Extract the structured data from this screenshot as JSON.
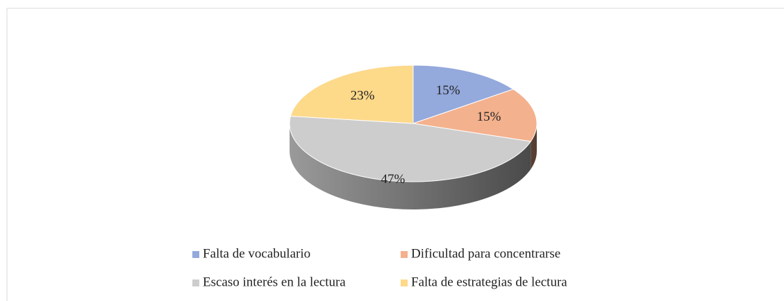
{
  "chart_data": {
    "type": "pie",
    "categories": [
      "Falta de vocabulario",
      "Dificultad para concentrarse",
      "Escaso interés en la lectura",
      "Falta de estrategias de lectura"
    ],
    "values": [
      15,
      15,
      47,
      23
    ],
    "value_labels": [
      "15%",
      "15%",
      "47%",
      "23%"
    ],
    "colors": [
      "#94a9dc",
      "#f4b18d",
      "#cdcdcd",
      "#fdd98a"
    ],
    "legend": "bottom"
  }
}
